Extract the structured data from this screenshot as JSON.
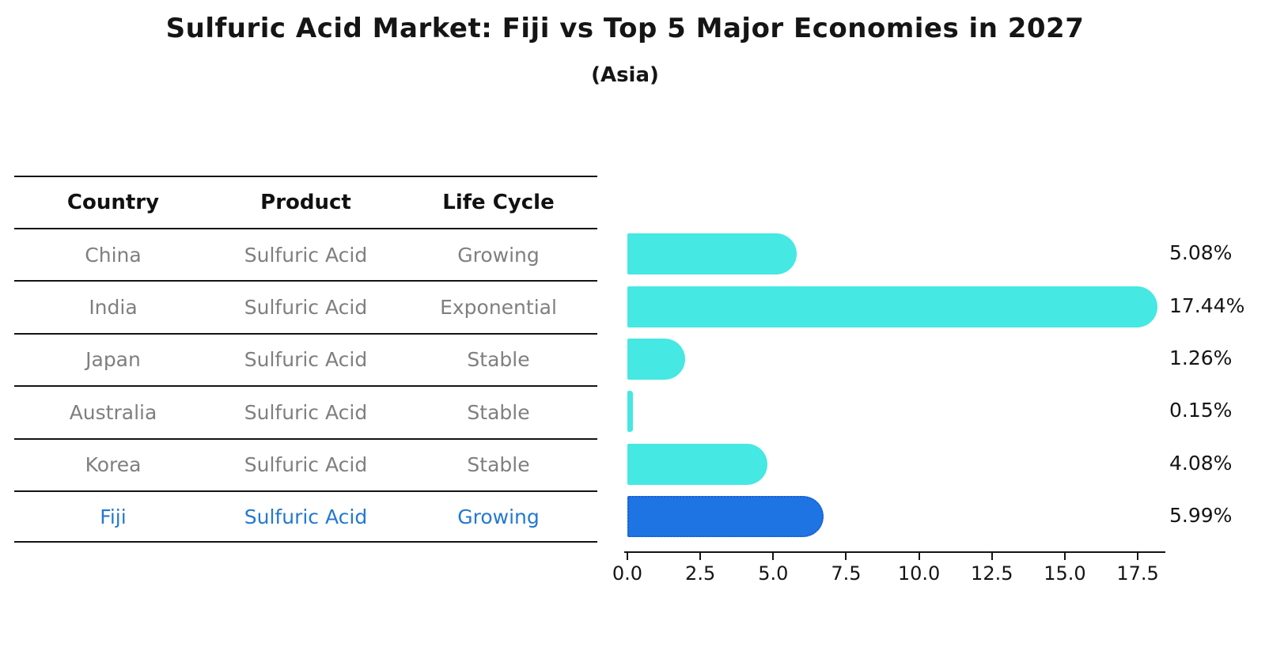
{
  "chart": {
    "title": "Sulfuric Acid Market: Fiji vs Top 5 Major Economies in 2027",
    "subtitle": "(Asia)",
    "colors": {
      "bar_default": "#45e8e2",
      "bar_highlight": "#1f74e4",
      "bar_highlight_border": "#1b5fd0",
      "highlight_text": "#2478d2",
      "row_text": "#7f7f7f",
      "axis_line": "#141414"
    }
  },
  "table": {
    "headers": [
      "Country",
      "Product",
      "Life Cycle"
    ],
    "rows": [
      {
        "country": "China",
        "product": "Sulfuric Acid",
        "life_cycle": "Growing",
        "highlight": false
      },
      {
        "country": "India",
        "product": "Sulfuric Acid",
        "life_cycle": "Exponential",
        "highlight": false
      },
      {
        "country": "Japan",
        "product": "Sulfuric Acid",
        "life_cycle": "Stable",
        "highlight": false
      },
      {
        "country": "Australia",
        "product": "Sulfuric Acid",
        "life_cycle": "Stable",
        "highlight": false
      },
      {
        "country": "Korea",
        "product": "Sulfuric Acid",
        "life_cycle": "Stable",
        "highlight": false
      },
      {
        "country": "Fiji",
        "product": "Sulfuric Acid",
        "life_cycle": "Growing",
        "highlight": true
      }
    ]
  },
  "chart_data": {
    "type": "bar",
    "orientation": "horizontal",
    "title": "Sulfuric Acid Market: Fiji vs Top 5 Major Economies in 2027",
    "subtitle": "(Asia)",
    "categories": [
      "China",
      "India",
      "Japan",
      "Australia",
      "Korea",
      "Fiji"
    ],
    "values": [
      5.08,
      17.44,
      1.26,
      0.15,
      4.08,
      5.99
    ],
    "value_labels": [
      "5.08%",
      "17.44%",
      "1.26%",
      "0.15%",
      "4.08%",
      "5.99%"
    ],
    "highlighted_category": "Fiji",
    "x_tick_labels": [
      "0.0",
      "2.5",
      "5.0",
      "7.5",
      "10.0",
      "12.5",
      "15.0",
      "17.5"
    ],
    "xlim": [
      0,
      18.42
    ],
    "grid": false,
    "legend": false
  }
}
